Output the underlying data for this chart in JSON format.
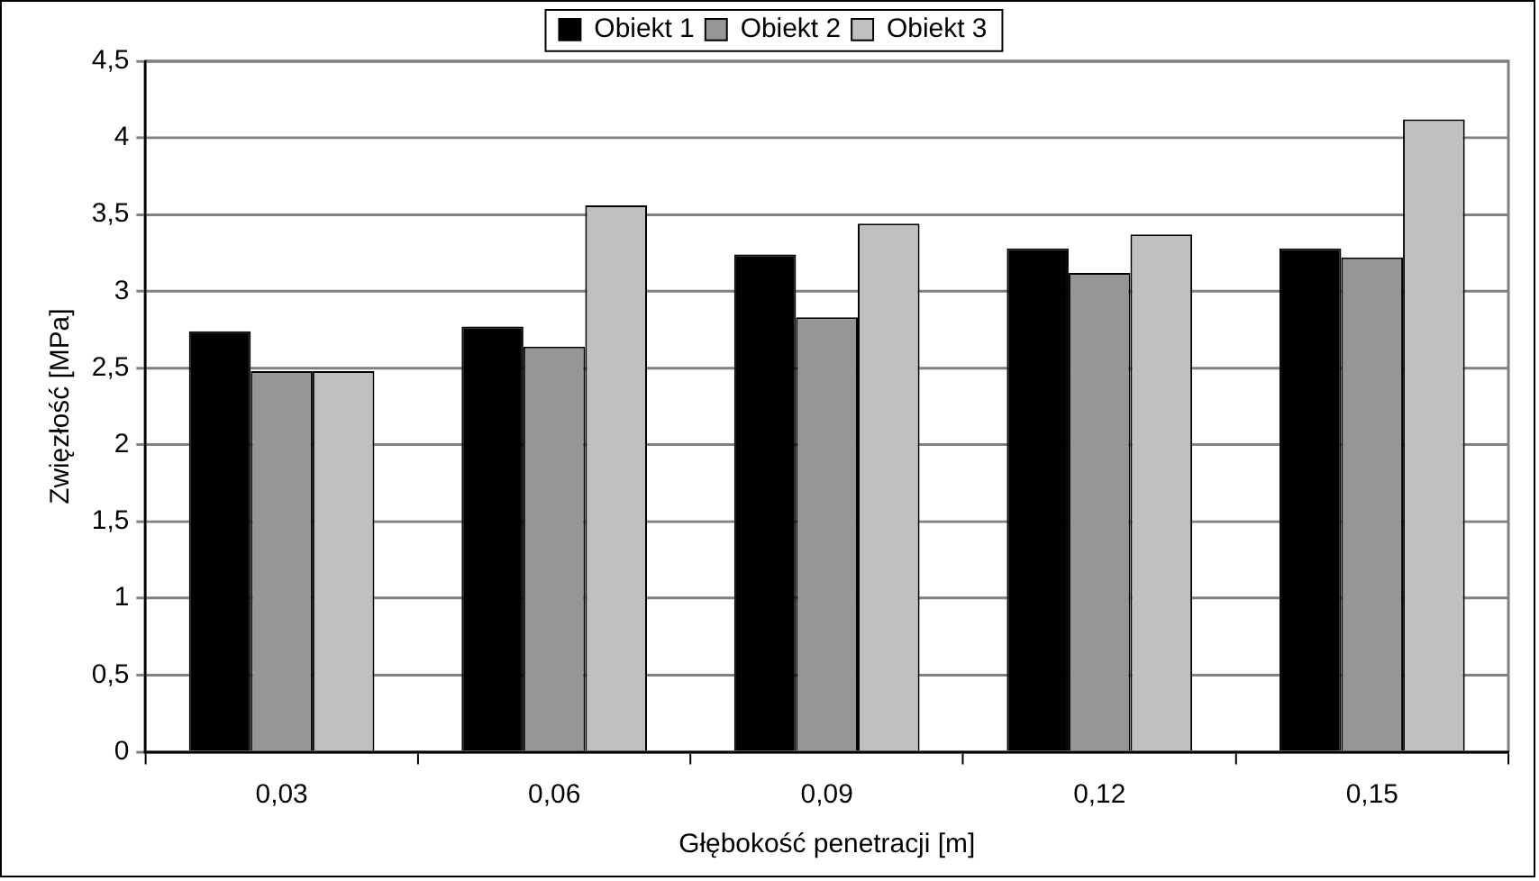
{
  "chart_data": {
    "type": "bar",
    "xlabel": "Głębokość penetracji [m]",
    "ylabel": "Zwięzłość [MPa]",
    "categories": [
      "0,03",
      "0,06",
      "0,09",
      "0,12",
      "0,15"
    ],
    "series": [
      {
        "name": "Obiekt 1",
        "color": "#000000",
        "values": [
          2.74,
          2.77,
          3.24,
          3.28,
          3.28
        ]
      },
      {
        "name": "Obiekt 2",
        "color": "#969696",
        "values": [
          2.48,
          2.64,
          2.83,
          3.12,
          3.22
        ]
      },
      {
        "name": "Obiekt 3",
        "color": "#c0c0c0",
        "values": [
          2.48,
          3.56,
          3.44,
          3.37,
          4.12
        ]
      }
    ],
    "ylim": [
      0,
      4.5
    ],
    "yticks": [
      0,
      {
        "value": 0.5,
        "label": "0,5"
      },
      1,
      {
        "value": 1.5,
        "label": "1,5"
      },
      2,
      {
        "value": 2.5,
        "label": "2,5"
      },
      3,
      {
        "value": 3.5,
        "label": "3,5"
      },
      4,
      {
        "value": 4.5,
        "label": "4,5"
      }
    ],
    "grid": "y",
    "legend": "top"
  }
}
